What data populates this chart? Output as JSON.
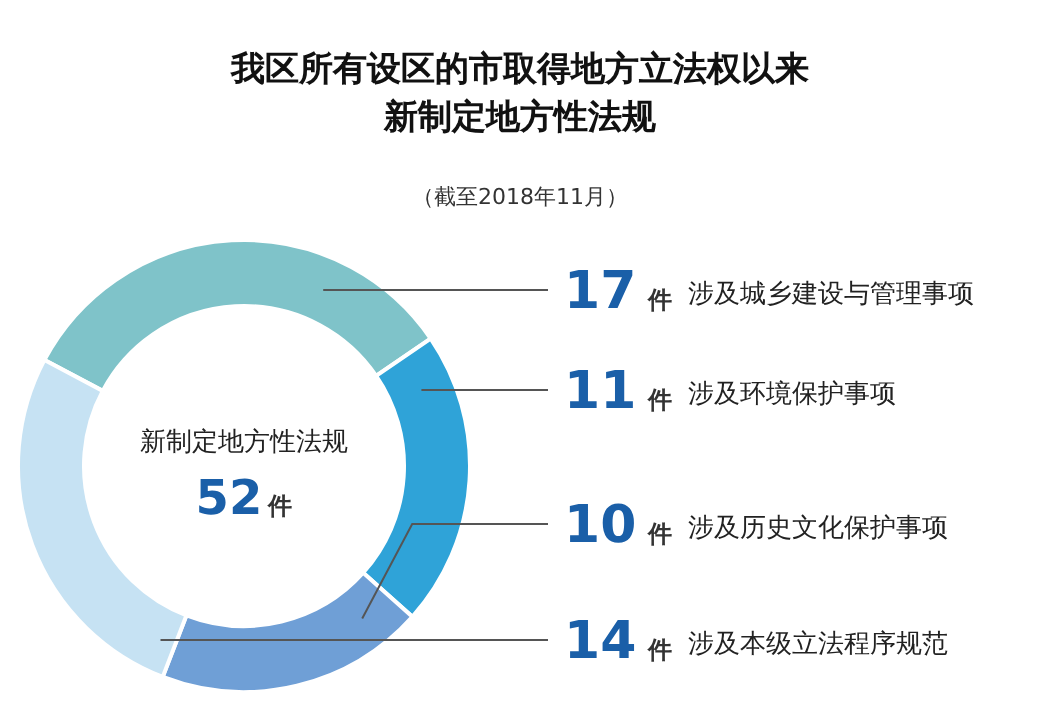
{
  "chart_data": {
    "type": "donut",
    "title": "我区所有设区的市取得地方立法权以来新制定地方性法规",
    "subtitle": "（截至2018年11月）",
    "categories": [
      "涉及城乡建设与管理事项",
      "涉及环境保护事项",
      "涉及历史文化保护事项",
      "涉及本级立法程序规范"
    ],
    "values": [
      17,
      11,
      10,
      14
    ],
    "colors": [
      "#7fc3c9",
      "#2fa3d8",
      "#6f9fd6",
      "#c6e2f3"
    ],
    "value_labels": [
      "17件",
      "11件",
      "10件",
      "14件"
    ],
    "annotations": [
      "新制定地方性法规",
      "52件"
    ]
  }
}
